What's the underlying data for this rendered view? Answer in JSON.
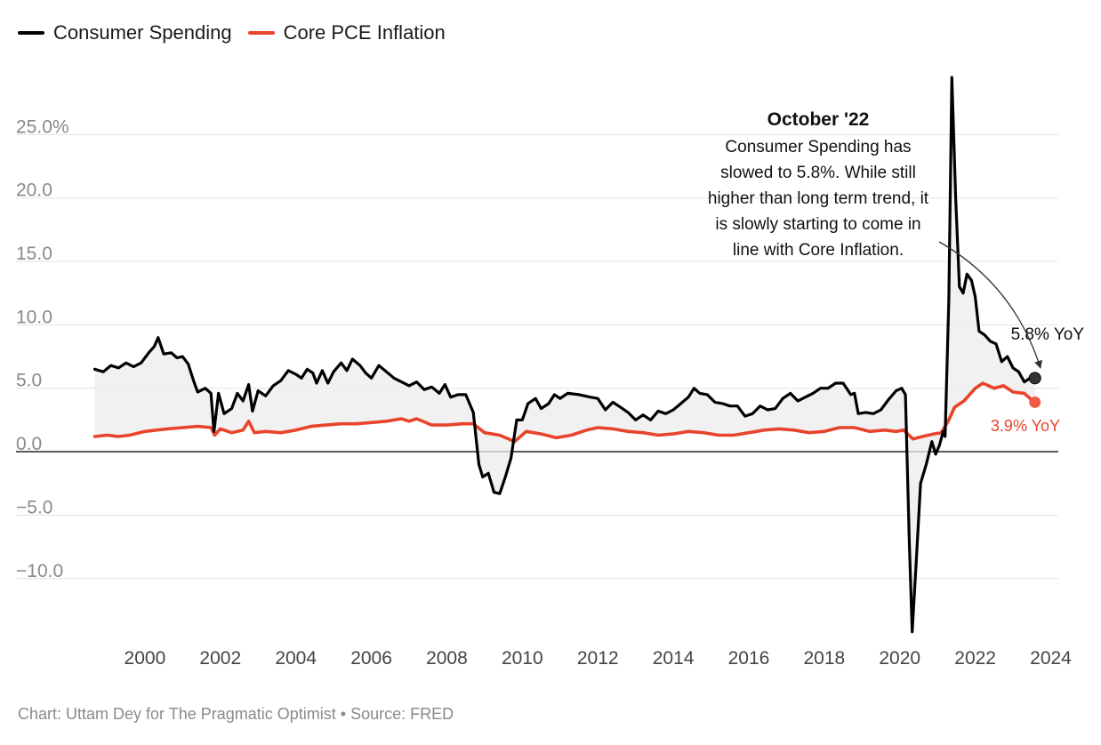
{
  "legend": {
    "items": [
      {
        "label": "Consumer Spending",
        "color": "#000000"
      },
      {
        "label": "Core PCE Inflation",
        "color": "#e8442b"
      }
    ]
  },
  "annotation": {
    "title": "October '22",
    "lines": [
      "Consumer Spending has",
      "slowed to 5.8%. While still",
      "higher than long term trend, it",
      "is slowly starting to come in",
      "line with Core Inflation."
    ]
  },
  "footer": "Chart: Uttam Dey for The Pragmatic Optimist • Source: FRED",
  "chart_data": {
    "type": "line",
    "x_label": "",
    "y_label": "",
    "xlim": [
      1998.4,
      2024.2
    ],
    "ylim": [
      -14.5,
      30
    ],
    "y_ticks": [
      {
        "value": 25,
        "label": "25.0%"
      },
      {
        "value": 20,
        "label": "20.0"
      },
      {
        "value": 15,
        "label": "15.0"
      },
      {
        "value": 10,
        "label": "10.0"
      },
      {
        "value": 5,
        "label": "5.0"
      },
      {
        "value": 0,
        "label": "0.0"
      },
      {
        "value": -5,
        "label": "−5.0"
      },
      {
        "value": -10,
        "label": "−10.0"
      }
    ],
    "x_ticks": [
      "2000",
      "2002",
      "2004",
      "2006",
      "2008",
      "2010",
      "2012",
      "2014",
      "2016",
      "2018",
      "2020",
      "2022",
      "2024"
    ],
    "grid": true,
    "legend_position": "top-left",
    "series": [
      {
        "name": "Consumer Spending",
        "color": "#000000",
        "end_label": "5.8% YoY",
        "points": [
          [
            1998.67,
            6.5
          ],
          [
            1998.9,
            6.3
          ],
          [
            1999.1,
            6.8
          ],
          [
            1999.3,
            6.6
          ],
          [
            1999.5,
            7.0
          ],
          [
            1999.7,
            6.7
          ],
          [
            1999.9,
            7.0
          ],
          [
            2000.1,
            7.8
          ],
          [
            2000.25,
            8.3
          ],
          [
            2000.35,
            9.0
          ],
          [
            2000.5,
            7.7
          ],
          [
            2000.7,
            7.8
          ],
          [
            2000.85,
            7.4
          ],
          [
            2001.0,
            7.5
          ],
          [
            2001.15,
            6.9
          ],
          [
            2001.3,
            5.5
          ],
          [
            2001.4,
            4.7
          ],
          [
            2001.6,
            5.0
          ],
          [
            2001.75,
            4.6
          ],
          [
            2001.83,
            1.6
          ],
          [
            2001.95,
            4.6
          ],
          [
            2002.1,
            3.0
          ],
          [
            2002.3,
            3.4
          ],
          [
            2002.45,
            4.6
          ],
          [
            2002.6,
            4.0
          ],
          [
            2002.75,
            5.3
          ],
          [
            2002.85,
            3.2
          ],
          [
            2003.0,
            4.8
          ],
          [
            2003.2,
            4.4
          ],
          [
            2003.4,
            5.2
          ],
          [
            2003.6,
            5.6
          ],
          [
            2003.8,
            6.4
          ],
          [
            2004.0,
            6.1
          ],
          [
            2004.15,
            5.8
          ],
          [
            2004.3,
            6.5
          ],
          [
            2004.45,
            6.2
          ],
          [
            2004.55,
            5.4
          ],
          [
            2004.7,
            6.4
          ],
          [
            2004.85,
            5.4
          ],
          [
            2005.0,
            6.3
          ],
          [
            2005.2,
            7.0
          ],
          [
            2005.35,
            6.4
          ],
          [
            2005.5,
            7.3
          ],
          [
            2005.7,
            6.8
          ],
          [
            2005.85,
            6.2
          ],
          [
            2006.0,
            5.8
          ],
          [
            2006.2,
            6.8
          ],
          [
            2006.4,
            6.3
          ],
          [
            2006.6,
            5.8
          ],
          [
            2006.8,
            5.5
          ],
          [
            2007.0,
            5.2
          ],
          [
            2007.2,
            5.5
          ],
          [
            2007.4,
            4.9
          ],
          [
            2007.6,
            5.1
          ],
          [
            2007.8,
            4.6
          ],
          [
            2007.95,
            5.3
          ],
          [
            2008.1,
            4.3
          ],
          [
            2008.3,
            4.5
          ],
          [
            2008.5,
            4.5
          ],
          [
            2008.7,
            3.1
          ],
          [
            2008.85,
            -1.0
          ],
          [
            2008.95,
            -2.0
          ],
          [
            2009.1,
            -1.7
          ],
          [
            2009.25,
            -3.2
          ],
          [
            2009.4,
            -3.3
          ],
          [
            2009.55,
            -2.0
          ],
          [
            2009.7,
            -0.5
          ],
          [
            2009.85,
            2.5
          ],
          [
            2010.0,
            2.5
          ],
          [
            2010.15,
            3.8
          ],
          [
            2010.35,
            4.2
          ],
          [
            2010.5,
            3.4
          ],
          [
            2010.7,
            3.8
          ],
          [
            2010.85,
            4.5
          ],
          [
            2011.0,
            4.2
          ],
          [
            2011.2,
            4.6
          ],
          [
            2011.5,
            4.5
          ],
          [
            2011.8,
            4.3
          ],
          [
            2012.0,
            4.2
          ],
          [
            2012.2,
            3.3
          ],
          [
            2012.4,
            3.9
          ],
          [
            2012.6,
            3.5
          ],
          [
            2012.8,
            3.1
          ],
          [
            2013.0,
            2.5
          ],
          [
            2013.2,
            2.9
          ],
          [
            2013.4,
            2.5
          ],
          [
            2013.6,
            3.2
          ],
          [
            2013.8,
            3.0
          ],
          [
            2014.0,
            3.3
          ],
          [
            2014.2,
            3.8
          ],
          [
            2014.4,
            4.3
          ],
          [
            2014.55,
            5.0
          ],
          [
            2014.7,
            4.6
          ],
          [
            2014.9,
            4.5
          ],
          [
            2015.1,
            3.9
          ],
          [
            2015.3,
            3.8
          ],
          [
            2015.5,
            3.6
          ],
          [
            2015.7,
            3.6
          ],
          [
            2015.9,
            2.8
          ],
          [
            2016.1,
            3.0
          ],
          [
            2016.3,
            3.6
          ],
          [
            2016.5,
            3.3
          ],
          [
            2016.7,
            3.4
          ],
          [
            2016.9,
            4.2
          ],
          [
            2017.1,
            4.6
          ],
          [
            2017.3,
            4.0
          ],
          [
            2017.5,
            4.3
          ],
          [
            2017.7,
            4.6
          ],
          [
            2017.9,
            5.0
          ],
          [
            2018.1,
            5.0
          ],
          [
            2018.3,
            5.4
          ],
          [
            2018.5,
            5.4
          ],
          [
            2018.7,
            4.5
          ],
          [
            2018.8,
            4.6
          ],
          [
            2018.9,
            3.0
          ],
          [
            2019.1,
            3.1
          ],
          [
            2019.3,
            3.0
          ],
          [
            2019.5,
            3.3
          ],
          [
            2019.7,
            4.1
          ],
          [
            2019.9,
            4.8
          ],
          [
            2020.05,
            5.0
          ],
          [
            2020.15,
            4.5
          ],
          [
            2020.25,
            -7.0
          ],
          [
            2020.33,
            -14.2
          ],
          [
            2020.45,
            -8.0
          ],
          [
            2020.55,
            -2.5
          ],
          [
            2020.7,
            -1.0
          ],
          [
            2020.85,
            0.8
          ],
          [
            2020.95,
            -0.2
          ],
          [
            2021.05,
            0.5
          ],
          [
            2021.15,
            1.6
          ],
          [
            2021.2,
            1.2
          ],
          [
            2021.3,
            12.0
          ],
          [
            2021.38,
            29.5
          ],
          [
            2021.48,
            20.0
          ],
          [
            2021.58,
            13.0
          ],
          [
            2021.68,
            12.5
          ],
          [
            2021.78,
            14.0
          ],
          [
            2021.9,
            13.5
          ],
          [
            2022.0,
            12.2
          ],
          [
            2022.1,
            9.5
          ],
          [
            2022.25,
            9.2
          ],
          [
            2022.4,
            8.7
          ],
          [
            2022.55,
            8.5
          ],
          [
            2022.7,
            7.1
          ],
          [
            2022.85,
            7.5
          ],
          [
            2023.0,
            6.6
          ],
          [
            2023.15,
            6.3
          ],
          [
            2023.3,
            5.5
          ],
          [
            2023.45,
            5.8
          ],
          [
            2023.58,
            5.8
          ]
        ]
      },
      {
        "name": "Core PCE Inflation",
        "color": "#e8442b",
        "end_label": "3.9% YoY",
        "points": [
          [
            1998.67,
            1.2
          ],
          [
            1999.0,
            1.3
          ],
          [
            1999.3,
            1.2
          ],
          [
            1999.6,
            1.3
          ],
          [
            2000.0,
            1.6
          ],
          [
            2000.3,
            1.7
          ],
          [
            2000.6,
            1.8
          ],
          [
            2001.0,
            1.9
          ],
          [
            2001.4,
            2.0
          ],
          [
            2001.75,
            1.9
          ],
          [
            2001.85,
            1.3
          ],
          [
            2002.0,
            1.8
          ],
          [
            2002.3,
            1.5
          ],
          [
            2002.6,
            1.7
          ],
          [
            2002.75,
            2.4
          ],
          [
            2002.9,
            1.5
          ],
          [
            2003.2,
            1.6
          ],
          [
            2003.6,
            1.5
          ],
          [
            2004.0,
            1.7
          ],
          [
            2004.4,
            2.0
          ],
          [
            2004.8,
            2.1
          ],
          [
            2005.2,
            2.2
          ],
          [
            2005.6,
            2.2
          ],
          [
            2006.0,
            2.3
          ],
          [
            2006.4,
            2.4
          ],
          [
            2006.8,
            2.6
          ],
          [
            2007.0,
            2.4
          ],
          [
            2007.2,
            2.6
          ],
          [
            2007.6,
            2.1
          ],
          [
            2008.0,
            2.1
          ],
          [
            2008.4,
            2.2
          ],
          [
            2008.7,
            2.2
          ],
          [
            2009.0,
            1.5
          ],
          [
            2009.4,
            1.3
          ],
          [
            2009.8,
            0.8
          ],
          [
            2010.1,
            1.6
          ],
          [
            2010.5,
            1.4
          ],
          [
            2010.9,
            1.1
          ],
          [
            2011.3,
            1.3
          ],
          [
            2011.7,
            1.7
          ],
          [
            2012.0,
            1.9
          ],
          [
            2012.4,
            1.8
          ],
          [
            2012.8,
            1.6
          ],
          [
            2013.2,
            1.5
          ],
          [
            2013.6,
            1.3
          ],
          [
            2014.0,
            1.4
          ],
          [
            2014.4,
            1.6
          ],
          [
            2014.8,
            1.5
          ],
          [
            2015.2,
            1.3
          ],
          [
            2015.6,
            1.3
          ],
          [
            2016.0,
            1.5
          ],
          [
            2016.4,
            1.7
          ],
          [
            2016.8,
            1.8
          ],
          [
            2017.2,
            1.7
          ],
          [
            2017.6,
            1.5
          ],
          [
            2018.0,
            1.6
          ],
          [
            2018.4,
            1.9
          ],
          [
            2018.8,
            1.9
          ],
          [
            2019.2,
            1.6
          ],
          [
            2019.6,
            1.7
          ],
          [
            2019.9,
            1.6
          ],
          [
            2020.1,
            1.7
          ],
          [
            2020.35,
            1.0
          ],
          [
            2020.6,
            1.2
          ],
          [
            2020.9,
            1.4
          ],
          [
            2021.1,
            1.5
          ],
          [
            2021.3,
            2.5
          ],
          [
            2021.45,
            3.5
          ],
          [
            2021.7,
            4.0
          ],
          [
            2022.0,
            5.0
          ],
          [
            2022.2,
            5.4
          ],
          [
            2022.5,
            5.0
          ],
          [
            2022.75,
            5.2
          ],
          [
            2023.0,
            4.7
          ],
          [
            2023.3,
            4.6
          ],
          [
            2023.45,
            4.2
          ],
          [
            2023.58,
            3.9
          ]
        ]
      }
    ]
  }
}
